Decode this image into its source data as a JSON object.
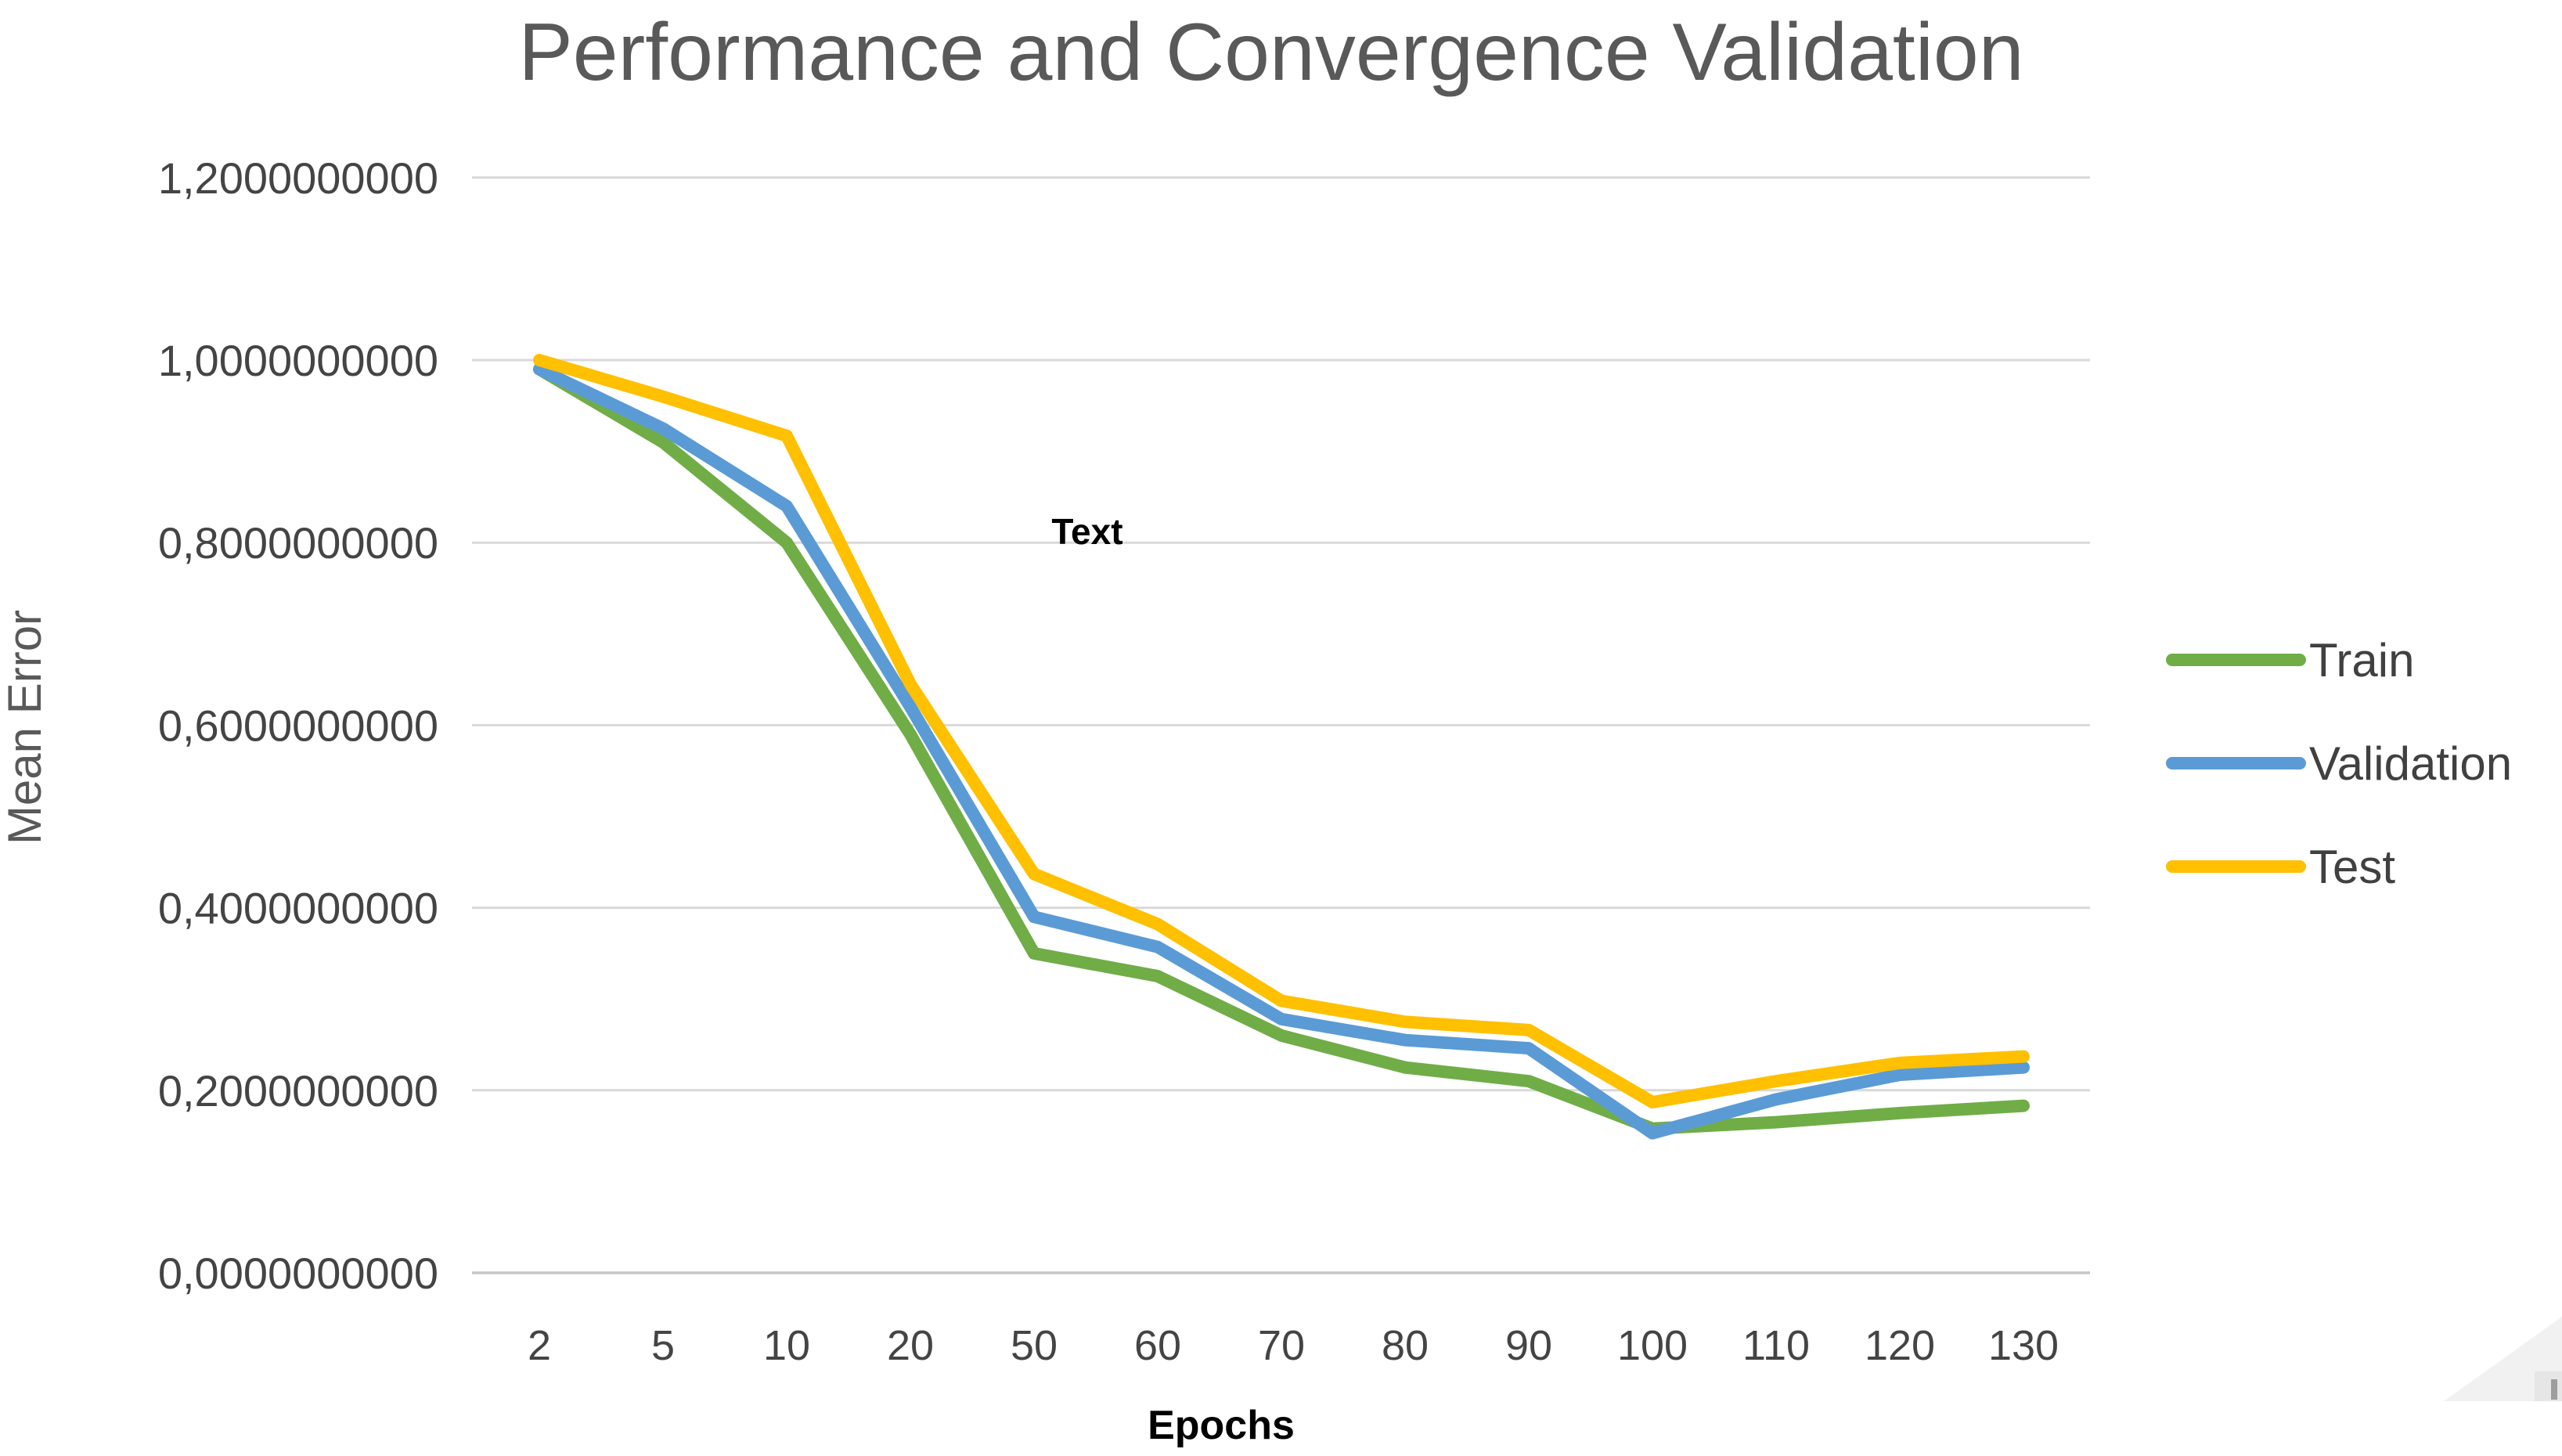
{
  "page": {
    "background": "#ffffff"
  },
  "chart_data": {
    "type": "line",
    "title": "Performance and Convergence Validation",
    "xlabel": "Epochs",
    "ylabel": "Mean Error",
    "categories": [
      "2",
      "5",
      "10",
      "20",
      "50",
      "60",
      "70",
      "80",
      "90",
      "100",
      "110",
      "120",
      "130"
    ],
    "y_tick_labels": [
      "0,0000000000",
      "0,2000000000",
      "0,4000000000",
      "0,6000000000",
      "0,8000000000",
      "1,0000000000",
      "1,2000000000"
    ],
    "ylim": [
      0,
      1.2
    ],
    "grid": "horizontal-only",
    "legend_position": "right",
    "series": [
      {
        "name": "Train",
        "color": "#70AD47",
        "values": [
          0.99,
          0.91,
          0.8,
          0.59,
          0.35,
          0.325,
          0.26,
          0.225,
          0.21,
          0.158,
          0.165,
          0.175,
          0.183
        ]
      },
      {
        "name": "Validation",
        "color": "#5B9BD5",
        "values": [
          0.99,
          0.925,
          0.84,
          0.62,
          0.39,
          0.357,
          0.278,
          0.255,
          0.246,
          0.153,
          0.19,
          0.217,
          0.225
        ]
      },
      {
        "name": "Test",
        "color": "#FFC000",
        "values": [
          1.0,
          0.96,
          0.917,
          0.645,
          0.437,
          0.382,
          0.298,
          0.275,
          0.266,
          0.187,
          0.21,
          0.23,
          0.237
        ]
      }
    ],
    "annotation": {
      "text": "Text",
      "x_index": 4.43,
      "y_value": 0.813
    },
    "colors": {
      "gridline": "#d9d9d9",
      "axis_line": "#c6c6c6",
      "title_text": "#595959",
      "tick_text": "#444444",
      "legend_text": "#404040"
    }
  }
}
